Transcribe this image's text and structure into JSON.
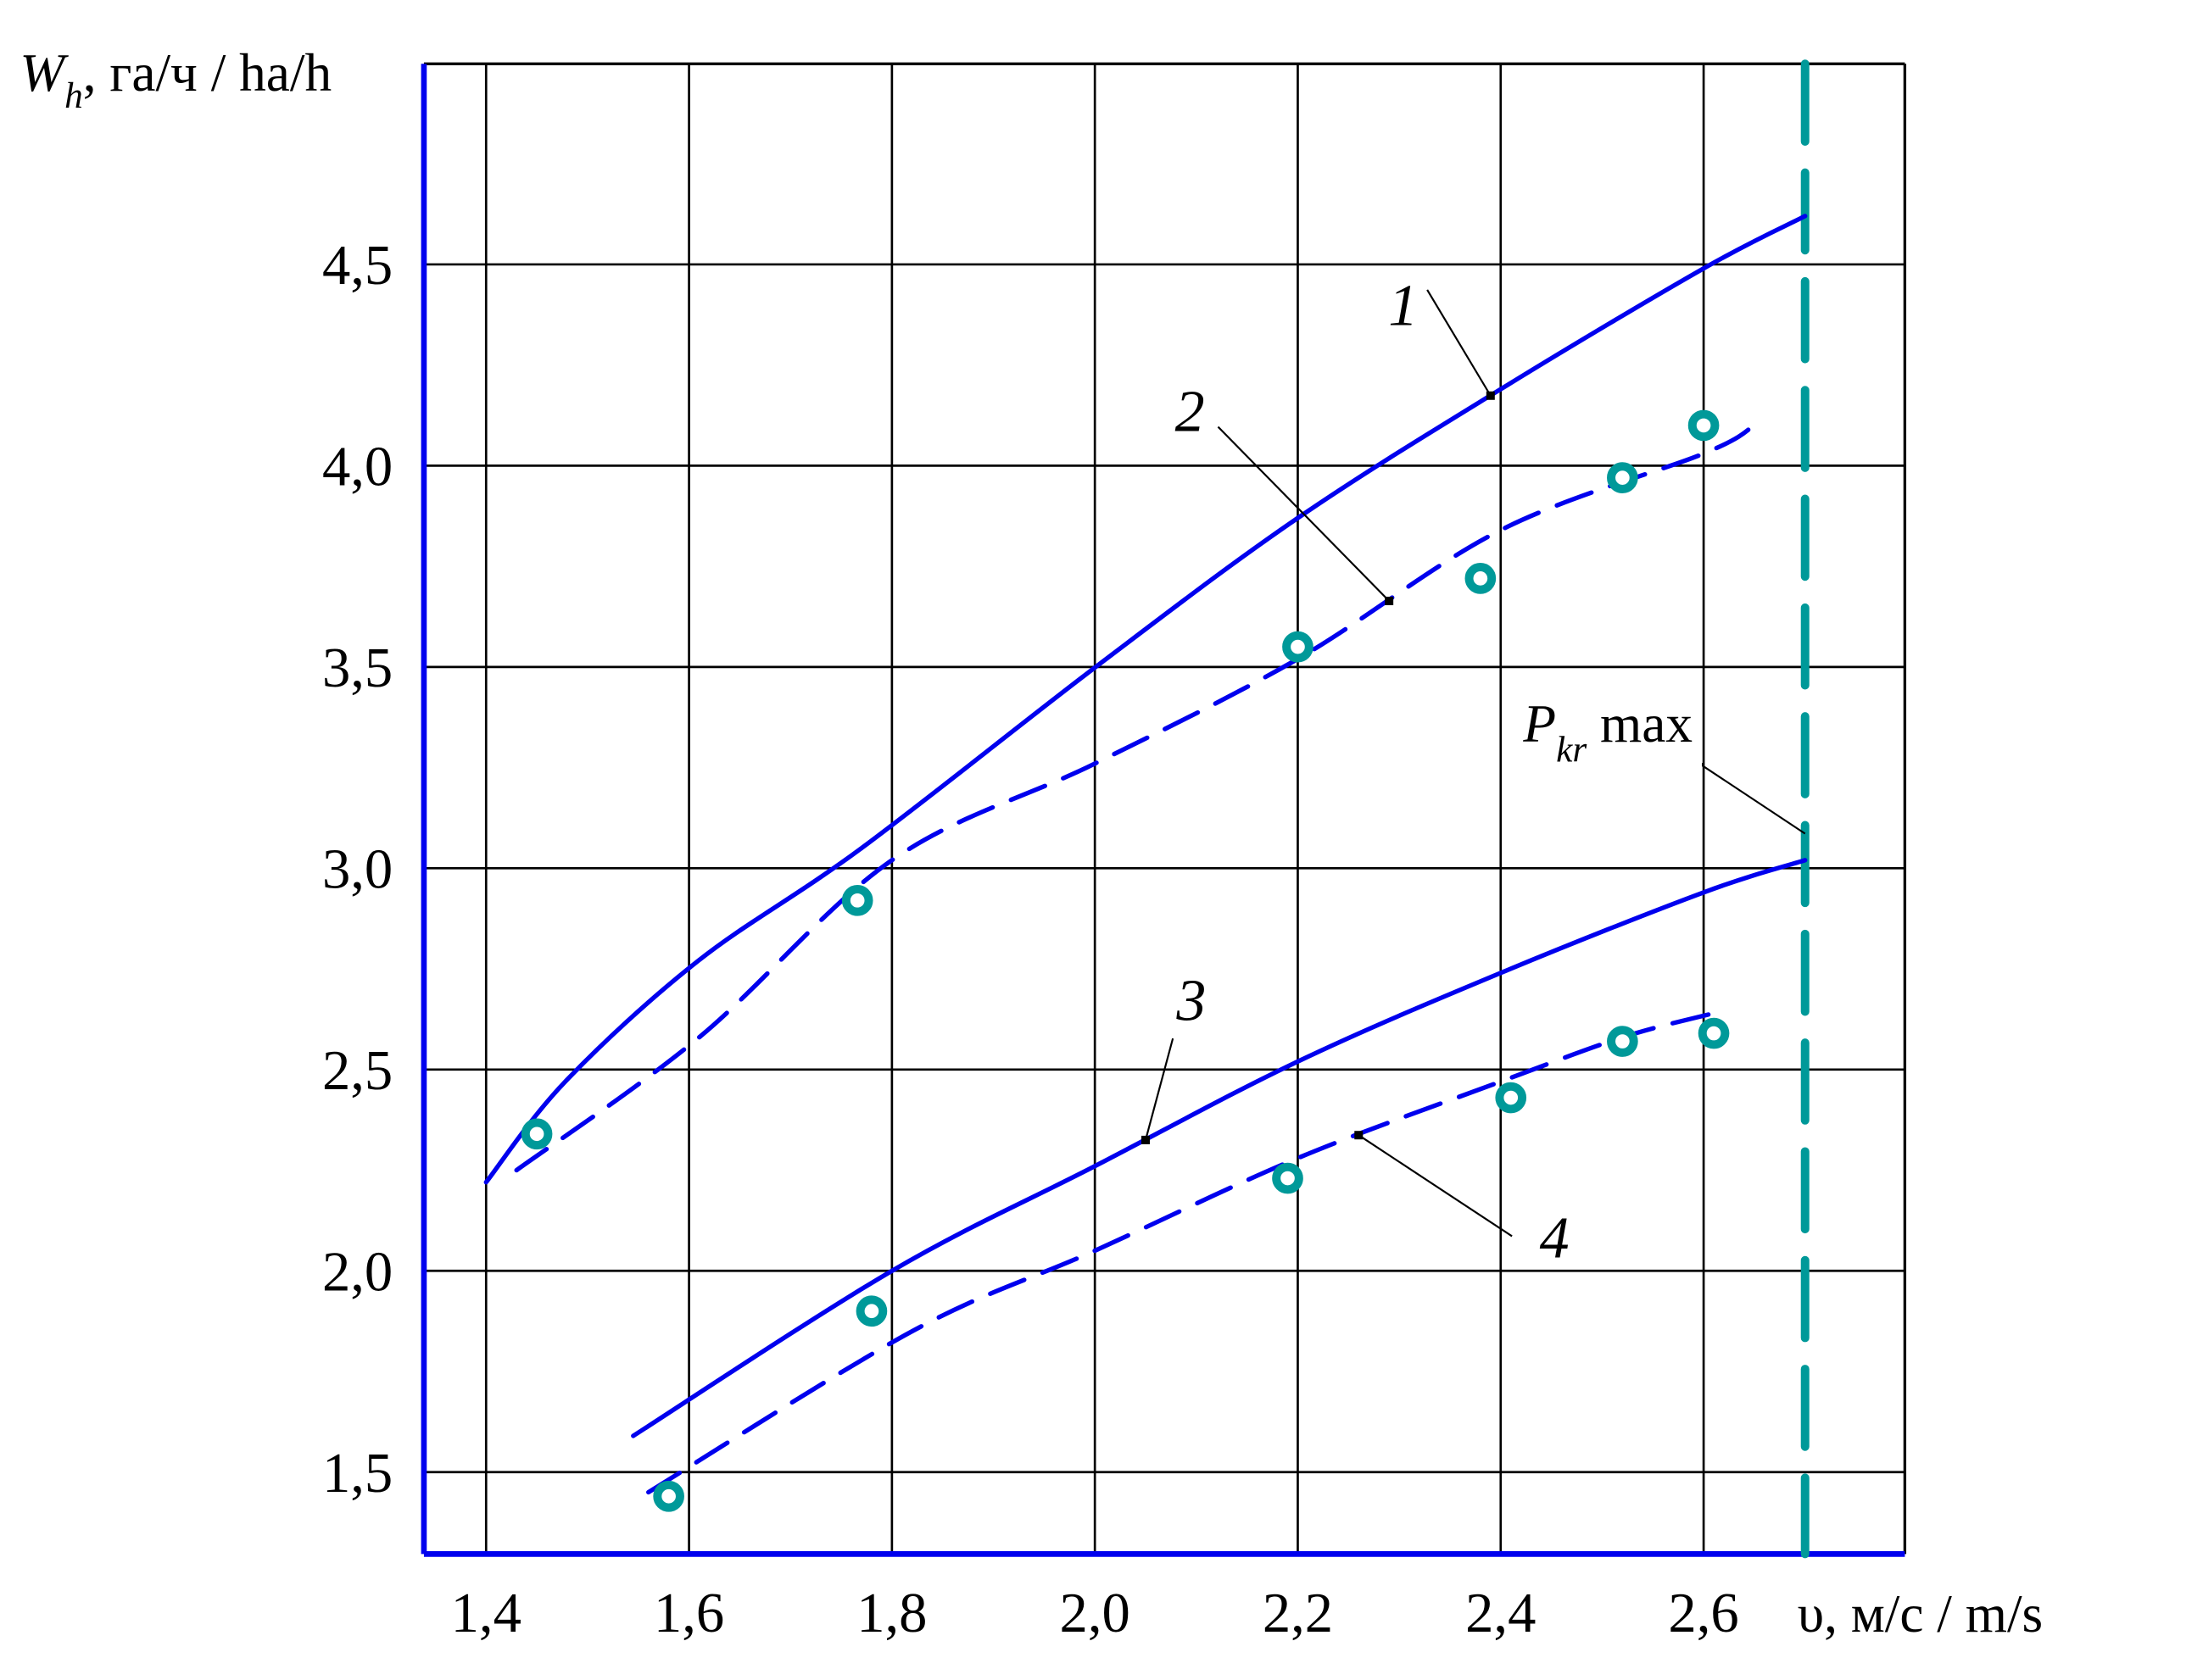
{
  "chart_data": {
    "type": "line",
    "title": "",
    "ylabel": {
      "main": "W",
      "sub": "h",
      "rest": ", га/ч / ha/h"
    },
    "xlabel": "υ, м/с / m/s",
    "xlim": [
      1.34,
      2.8
    ],
    "ylim": [
      1.3,
      5.0
    ],
    "x_ticks": [
      1.4,
      1.6,
      1.8,
      2.0,
      2.2,
      2.4,
      2.6
    ],
    "x_tick_labels": [
      "1,4",
      "1,6",
      "1,8",
      "2,0",
      "2,2",
      "2,4",
      "2,6"
    ],
    "y_ticks": [
      1.5,
      2.0,
      2.5,
      3.0,
      3.5,
      4.0,
      4.5
    ],
    "y_tick_labels": [
      "1,5",
      "2,0",
      "2,5",
      "3,0",
      "3,5",
      "4,0",
      "4,5"
    ],
    "grid": true,
    "colors": {
      "curve": "#0000ee",
      "points": "#009999",
      "limit": "#009999",
      "axis": "#0000ee"
    },
    "series": [
      {
        "name": "1",
        "style": "solid",
        "x": [
          1.4,
          1.478,
          1.609,
          1.77,
          2.006,
          2.2,
          2.4,
          2.6,
          2.7
        ],
        "y": [
          2.22,
          2.47,
          2.77,
          3.05,
          3.51,
          3.87,
          4.19,
          4.49,
          4.62
        ]
      },
      {
        "name": "2",
        "style": "dashed",
        "x": [
          1.43,
          1.61,
          1.8,
          2.0,
          2.2,
          2.4,
          2.6,
          2.65
        ],
        "y": [
          2.25,
          2.58,
          3.02,
          3.26,
          3.52,
          3.84,
          4.03,
          4.1
        ]
      },
      {
        "name": "3",
        "style": "solid",
        "x": [
          1.545,
          1.8,
          2.0,
          2.2,
          2.4,
          2.6,
          2.7
        ],
        "y": [
          1.59,
          2.0,
          2.26,
          2.52,
          2.74,
          2.94,
          3.02
        ]
      },
      {
        "name": "4",
        "style": "dashed",
        "x": [
          1.56,
          1.82,
          2.0,
          2.2,
          2.4,
          2.52,
          2.61
        ],
        "y": [
          1.45,
          1.85,
          2.05,
          2.28,
          2.47,
          2.58,
          2.64
        ]
      }
    ],
    "experimental_points": [
      {
        "name": "points-upper",
        "x": [
          1.45,
          1.766,
          2.2,
          2.38,
          2.52,
          2.6
        ],
        "y": [
          2.34,
          2.92,
          3.55,
          3.72,
          3.97,
          4.1
        ]
      },
      {
        "name": "points-lower",
        "x": [
          1.58,
          1.78,
          2.19,
          2.41,
          2.52,
          2.61
        ],
        "y": [
          1.44,
          1.9,
          2.23,
          2.43,
          2.57,
          2.59
        ]
      }
    ],
    "limit_line": {
      "x": 2.7,
      "label_main": "P",
      "label_sub": "kr",
      "label_rest": " max"
    },
    "annotations": [
      {
        "text": "1",
        "series": 0,
        "at_x": 2.39
      },
      {
        "text": "2",
        "series": 1,
        "at_x": 2.29
      },
      {
        "text": "3",
        "series": 2,
        "at_x": 2.05
      },
      {
        "text": "4",
        "series": 3,
        "at_x": 2.26
      }
    ]
  }
}
